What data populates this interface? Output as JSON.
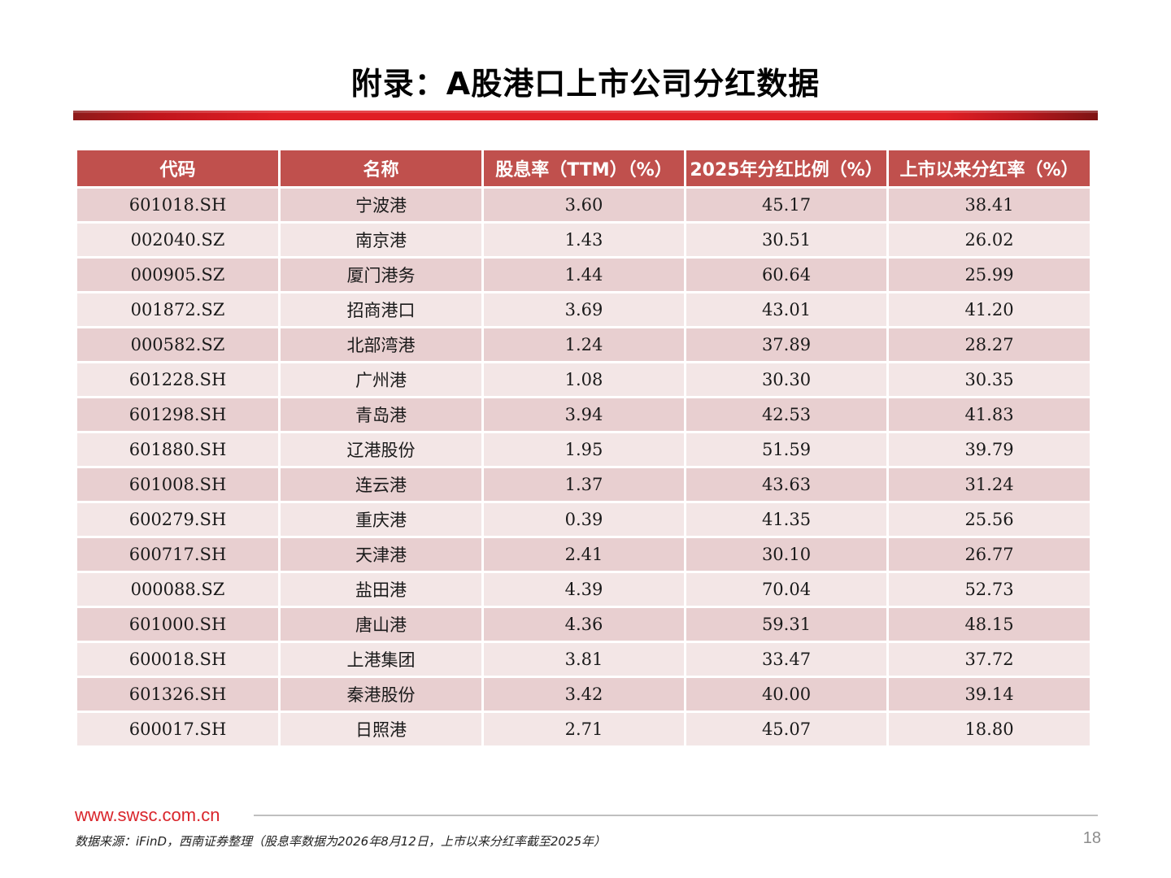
{
  "title": "附录：A股港口上市公司分红数据",
  "table": {
    "headers": [
      "代码",
      "名称",
      "股息率（TTM）（%）",
      "2025年分红比例（%）",
      "上市以来分红率（%）"
    ],
    "rows": [
      [
        "601018.SH",
        "宁波港",
        "3.60",
        "45.17",
        "38.41"
      ],
      [
        "002040.SZ",
        "南京港",
        "1.43",
        "30.51",
        "26.02"
      ],
      [
        "000905.SZ",
        "厦门港务",
        "1.44",
        "60.64",
        "25.99"
      ],
      [
        "001872.SZ",
        "招商港口",
        "3.69",
        "43.01",
        "41.20"
      ],
      [
        "000582.SZ",
        "北部湾港",
        "1.24",
        "37.89",
        "28.27"
      ],
      [
        "601228.SH",
        "广州港",
        "1.08",
        "30.30",
        "30.35"
      ],
      [
        "601298.SH",
        "青岛港",
        "3.94",
        "42.53",
        "41.83"
      ],
      [
        "601880.SH",
        "辽港股份",
        "1.95",
        "51.59",
        "39.79"
      ],
      [
        "601008.SH",
        "连云港",
        "1.37",
        "43.63",
        "31.24"
      ],
      [
        "600279.SH",
        "重庆港",
        "0.39",
        "41.35",
        "25.56"
      ],
      [
        "600717.SH",
        "天津港",
        "2.41",
        "30.10",
        "26.77"
      ],
      [
        "000088.SZ",
        "盐田港",
        "4.39",
        "70.04",
        "52.73"
      ],
      [
        "601000.SH",
        "唐山港",
        "4.36",
        "59.31",
        "48.15"
      ],
      [
        "600018.SH",
        "上港集团",
        "3.81",
        "33.47",
        "37.72"
      ],
      [
        "601326.SH",
        "秦港股份",
        "3.42",
        "40.00",
        "39.14"
      ],
      [
        "600017.SH",
        "日照港",
        "2.71",
        "45.07",
        "18.80"
      ]
    ]
  },
  "footer": {
    "url": "www.swsc.com.cn",
    "source": "数据来源：iFinD，西南证券整理（股息率数据为2026年8月12日，上市以来分红率截至2025年）",
    "page_number": "18"
  },
  "colors": {
    "header_bg": "#c0504d",
    "row_odd": "#e8cfd0",
    "row_even": "#f3e6e6",
    "accent": "#e01e24"
  }
}
